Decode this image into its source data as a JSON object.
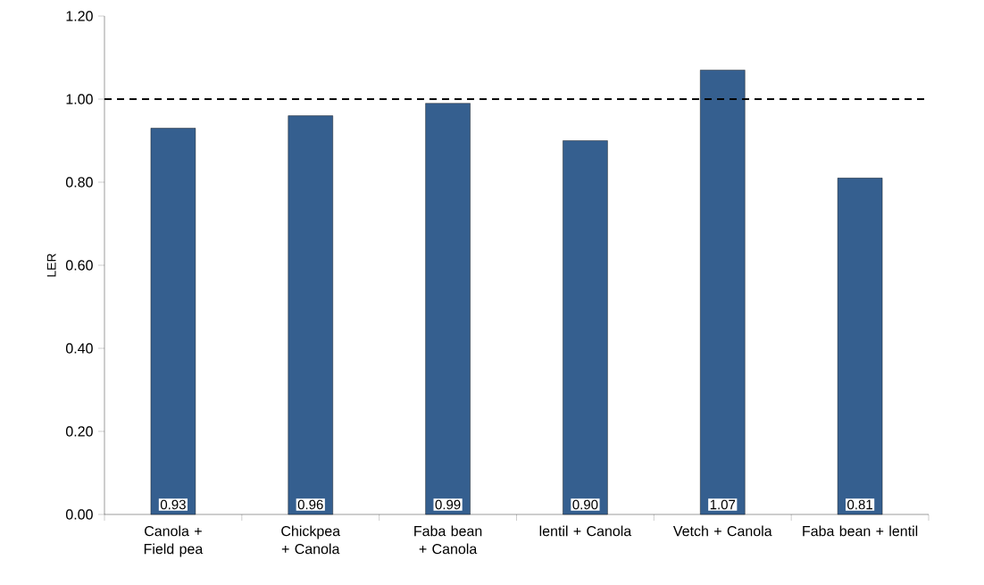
{
  "chart_data": {
    "type": "bar",
    "ylabel": "LER",
    "categories": [
      "Canola + Field pea",
      "Chickpea + Canola",
      "Faba bean + Canola",
      "lentil + Canola",
      "Vetch + Canola",
      "Faba bean + lentil"
    ],
    "values": [
      0.93,
      0.96,
      0.99,
      0.9,
      1.07,
      0.81
    ],
    "color": "#355f8f",
    "value_labels": [
      "0.93",
      "0.96",
      "0.99",
      "0.90",
      "1.07",
      "0.81"
    ],
    "ylim": [
      0,
      1.2
    ],
    "yticks": [
      {
        "value": 0,
        "label": "0.00"
      },
      {
        "value": 0.2,
        "label": "0.20"
      },
      {
        "value": 0.4,
        "label": "0.40"
      },
      {
        "value": 0.6,
        "label": "0.60"
      },
      {
        "value": 0.8,
        "label": "0.80"
      },
      {
        "value": 1.0,
        "label": "1.00"
      },
      {
        "value": 1.2,
        "label": "1.20"
      }
    ],
    "ref_lines": [
      {
        "axis": "y",
        "value": 1.0,
        "line_style": "dashed",
        "color": "#000000"
      }
    ],
    "grid": false
  }
}
